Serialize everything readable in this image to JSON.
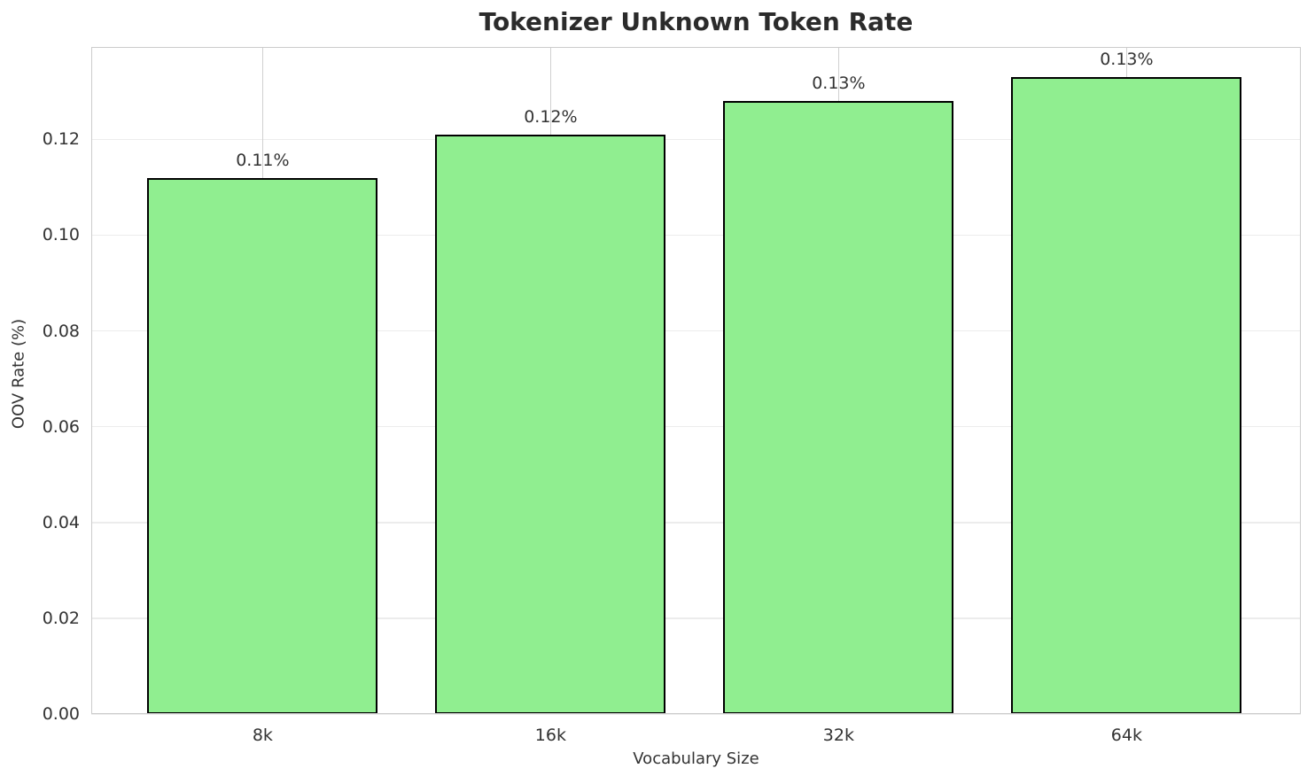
{
  "chart_data": {
    "type": "bar",
    "title": "Tokenizer Unknown Token Rate",
    "xlabel": "Vocabulary Size",
    "ylabel": "OOV Rate (%)",
    "categories": [
      "8k",
      "16k",
      "32k",
      "64k"
    ],
    "values": [
      0.112,
      0.121,
      0.128,
      0.133
    ],
    "bar_labels": [
      "0.11%",
      "0.12%",
      "0.13%",
      "0.13%"
    ],
    "ytick_values": [
      0.0,
      0.02,
      0.04,
      0.06,
      0.08,
      0.1,
      0.12
    ],
    "ytick_labels": [
      "0.00",
      "0.02",
      "0.04",
      "0.06",
      "0.08",
      "0.10",
      "0.12"
    ],
    "ylim": [
      0,
      0.1393
    ],
    "grid": true,
    "legend_position": "none"
  },
  "colors": {
    "bar_fill": "#90EE90",
    "bar_edge": "#000000",
    "grid_h": "#ececec",
    "grid_v": "#d0d0d0",
    "spine": "#cccccc",
    "title_text": "#2b2b2b",
    "tick_text": "#333333"
  }
}
